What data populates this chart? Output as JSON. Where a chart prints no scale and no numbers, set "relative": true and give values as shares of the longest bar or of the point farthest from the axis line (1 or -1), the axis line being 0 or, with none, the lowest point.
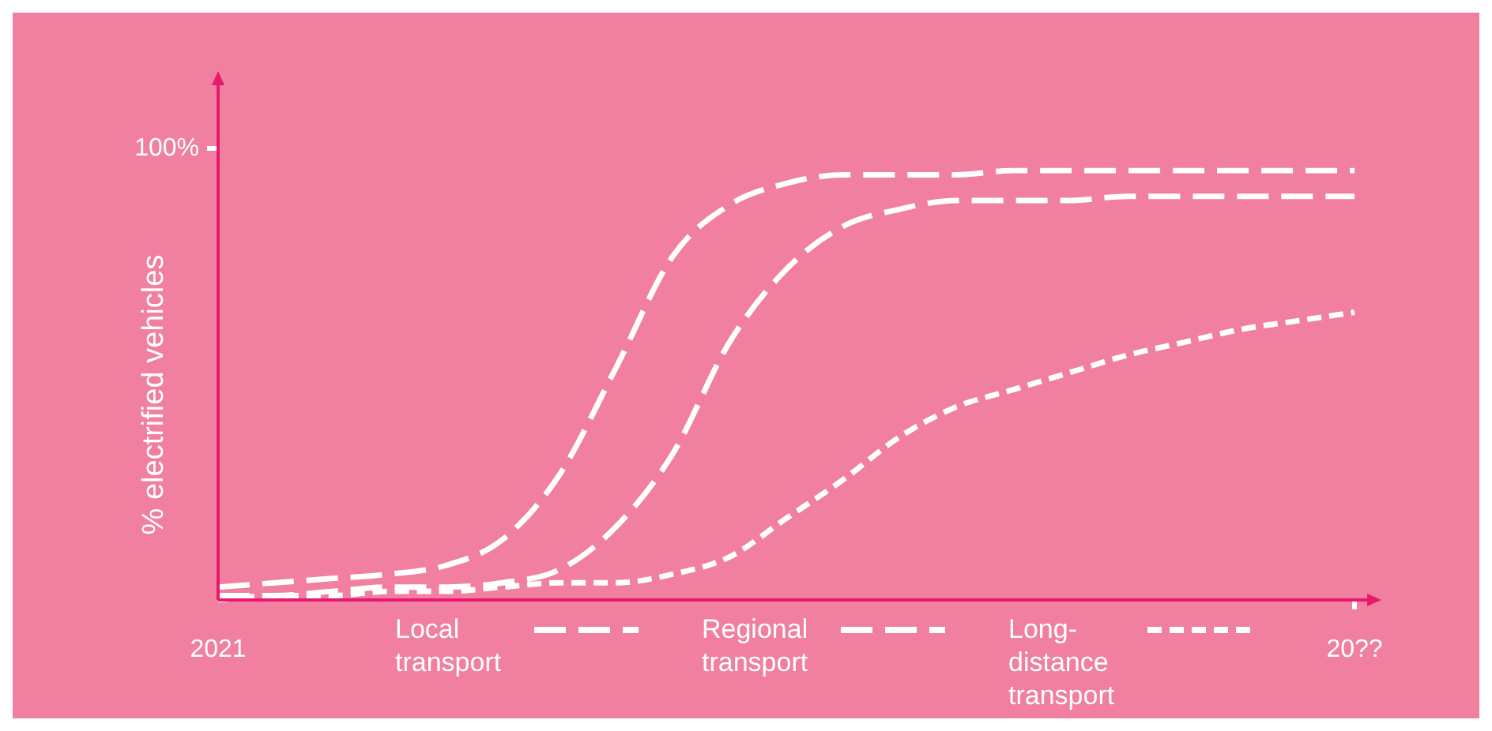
{
  "chart_data": {
    "type": "line",
    "relative": true,
    "ylabel": "% electrified vehicles",
    "annotations": [
      "100%"
    ],
    "categories": [
      "2021",
      null,
      null,
      null,
      null,
      null,
      null,
      null,
      null,
      null,
      null,
      null,
      null,
      null,
      null,
      null,
      null,
      null,
      null,
      null,
      "20??"
    ],
    "legend": "bottom",
    "marker": "none",
    "series": [
      {
        "name": "Local transport",
        "color": "#ffffff",
        "line_style": "dashed",
        "values": [
          0.03,
          0.04,
          0.05,
          0.06,
          0.08,
          0.14,
          0.29,
          0.54,
          0.8,
          0.92,
          0.97,
          0.99,
          0.99,
          0.99,
          1,
          1,
          1,
          1,
          1,
          1,
          1
        ]
      },
      {
        "name": "Regional transport",
        "color": "#ffffff",
        "line_style": "dashed",
        "values": [
          0.01,
          0.01,
          0.02,
          0.03,
          0.03,
          0.04,
          0.07,
          0.17,
          0.34,
          0.6,
          0.77,
          0.87,
          0.91,
          0.93,
          0.93,
          0.93,
          0.94,
          0.94,
          0.94,
          0.94,
          0.94
        ]
      },
      {
        "name": "Long-distance transport",
        "color": "#ffffff",
        "line_style": "dotted",
        "values": [
          0,
          0.01,
          0.01,
          0.02,
          0.02,
          0.03,
          0.04,
          0.04,
          0.06,
          0.1,
          0.19,
          0.28,
          0.38,
          0.45,
          0.49,
          0.53,
          0.57,
          0.6,
          0.63,
          0.65,
          0.67
        ]
      }
    ]
  }
}
